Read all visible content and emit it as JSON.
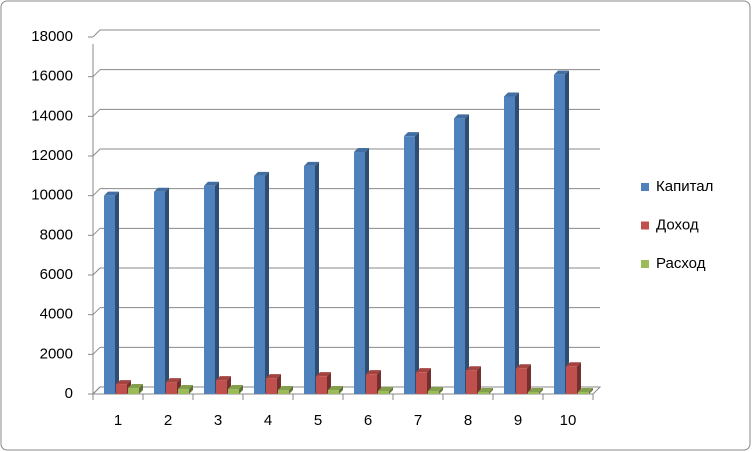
{
  "chart_data": {
    "type": "bar3d",
    "categories": [
      "1",
      "2",
      "3",
      "4",
      "5",
      "6",
      "7",
      "8",
      "9",
      "10"
    ],
    "series": [
      {
        "name": "Капитал",
        "color": "#4f81bd",
        "values": [
          10000,
          10200,
          10500,
          11000,
          11500,
          12200,
          13000,
          13900,
          15000,
          16100
        ]
      },
      {
        "name": "Доход",
        "color": "#c0504d",
        "values": [
          500,
          600,
          700,
          800,
          900,
          1000,
          1100,
          1200,
          1300,
          1400
        ]
      },
      {
        "name": "Расход",
        "color": "#9bbb59",
        "values": [
          300,
          250,
          250,
          200,
          200,
          150,
          150,
          100,
          100,
          100
        ]
      }
    ],
    "ylim": [
      0,
      18000
    ],
    "yticks": [
      0,
      2000,
      4000,
      6000,
      8000,
      10000,
      12000,
      14000,
      16000,
      18000
    ],
    "grid": true,
    "legend": "right"
  }
}
